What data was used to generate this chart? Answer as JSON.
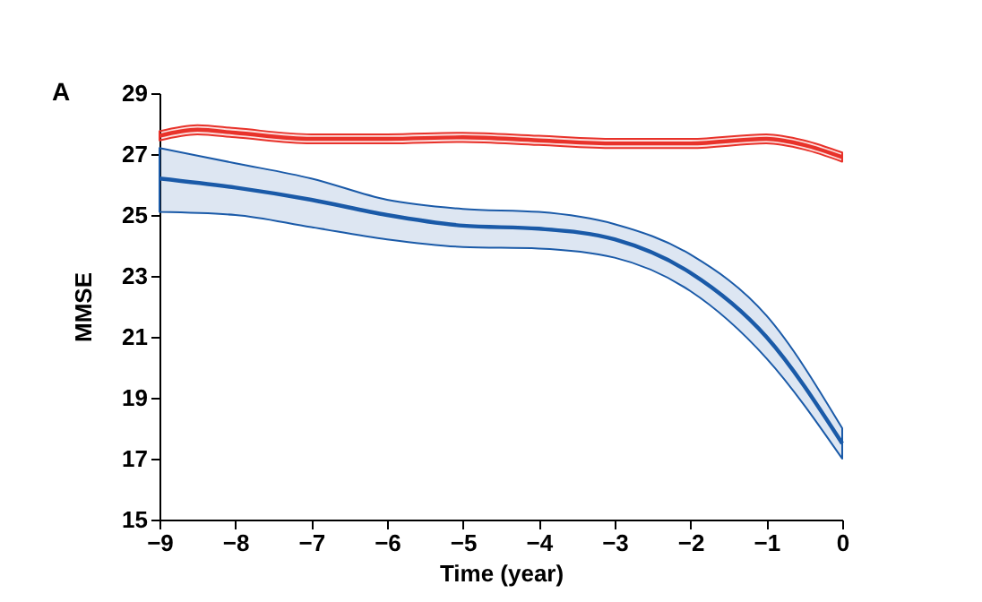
{
  "chart_data": {
    "type": "line",
    "xlabel": "Time (year)",
    "ylabel": "MMSE",
    "annotations": [
      "A"
    ],
    "xlim": [
      -9,
      0
    ],
    "xticks": [
      -9,
      -8,
      -7,
      -6,
      -5,
      -4,
      -3,
      -2,
      -1,
      0
    ],
    "ylim": [
      15,
      29
    ],
    "yticks": [
      15,
      17,
      19,
      21,
      23,
      25,
      27,
      29
    ],
    "grid": false,
    "marker": "none",
    "line_style": "solid",
    "series": [
      {
        "color": "#e8322a",
        "x": [
          -9,
          -8.5,
          -8,
          -7,
          -6,
          -5,
          -4,
          -3,
          -2,
          -1,
          -0.5,
          0
        ],
        "values": [
          27.6,
          27.8,
          27.7,
          27.5,
          27.5,
          27.55,
          27.45,
          27.35,
          27.35,
          27.5,
          27.3,
          26.9
        ],
        "lower": [
          27.45,
          27.65,
          27.55,
          27.35,
          27.35,
          27.4,
          27.3,
          27.2,
          27.2,
          27.35,
          27.15,
          26.75
        ],
        "upper": [
          27.75,
          27.95,
          27.85,
          27.65,
          27.65,
          27.7,
          27.6,
          27.5,
          27.5,
          27.65,
          27.45,
          27.05
        ]
      },
      {
        "color": "#1a5aa8",
        "x": [
          -9,
          -8,
          -7,
          -6,
          -5,
          -4,
          -3,
          -2,
          -1,
          0
        ],
        "values": [
          26.2,
          25.9,
          25.5,
          25.0,
          24.65,
          24.55,
          24.2,
          23.1,
          21.0,
          17.5
        ],
        "lower": [
          25.1,
          25.0,
          24.6,
          24.2,
          23.95,
          23.9,
          23.6,
          22.5,
          20.3,
          17.0
        ],
        "upper": [
          27.2,
          26.7,
          26.2,
          25.5,
          25.2,
          25.1,
          24.7,
          23.7,
          21.7,
          18.0
        ]
      }
    ]
  }
}
